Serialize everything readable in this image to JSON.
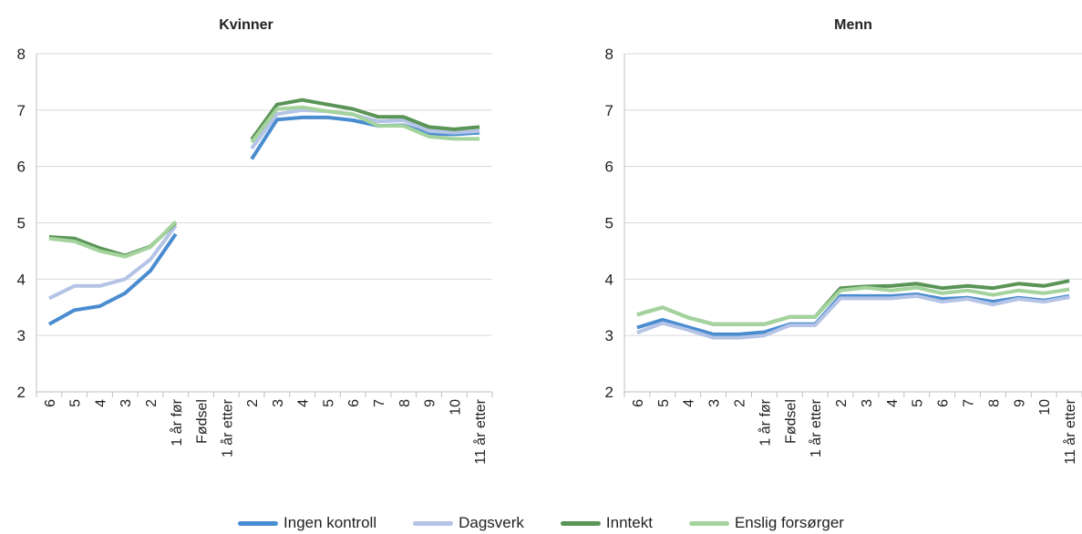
{
  "legend": [
    {
      "name": "Ingen kontroll",
      "color": "#4a8cd0"
    },
    {
      "name": "Dagsverk",
      "color": "#b4c3e6"
    },
    {
      "name": "Inntekt",
      "color": "#5a9456"
    },
    {
      "name": "Enslig forsørger",
      "color": "#a4d39d"
    }
  ],
  "chart_data": [
    {
      "type": "line",
      "title": "Kvinner",
      "categories": [
        "6",
        "5",
        "4",
        "3",
        "2",
        "1 år før",
        "Fødsel",
        "1 år etter",
        "2",
        "3",
        "4",
        "5",
        "6",
        "7",
        "8",
        "9",
        "10",
        "11 år etter"
      ],
      "ylim": [
        2,
        8
      ],
      "yticks": [
        "2",
        "3",
        "4",
        "5",
        "6",
        "7",
        "8"
      ],
      "grid": true,
      "series": [
        {
          "name": "Ingen kontroll",
          "color": "#4a8cd0",
          "values": [
            3.2,
            3.45,
            3.52,
            3.75,
            4.15,
            4.8,
            null,
            null,
            6.13,
            6.83,
            6.87,
            6.87,
            6.82,
            6.72,
            6.73,
            6.58,
            6.57,
            6.6
          ]
        },
        {
          "name": "Dagsverk",
          "color": "#b4c3e6",
          "values": [
            3.66,
            3.88,
            3.88,
            4.0,
            4.35,
            4.95,
            null,
            null,
            6.32,
            6.93,
            7.0,
            6.98,
            6.92,
            6.8,
            6.82,
            6.63,
            6.6,
            6.63
          ]
        },
        {
          "name": "Inntekt",
          "color": "#5a9456",
          "values": [
            4.75,
            4.72,
            4.55,
            4.42,
            4.58,
            5.0,
            null,
            null,
            6.48,
            7.1,
            7.18,
            7.1,
            7.02,
            6.88,
            6.88,
            6.7,
            6.66,
            6.7
          ]
        },
        {
          "name": "Enslig forsørger",
          "color": "#a4d39d",
          "values": [
            4.72,
            4.67,
            4.5,
            4.4,
            4.57,
            5.02,
            null,
            null,
            6.43,
            7.02,
            7.05,
            6.98,
            6.93,
            6.72,
            6.72,
            6.53,
            6.49,
            6.49
          ]
        }
      ]
    },
    {
      "type": "line",
      "title": "Menn",
      "categories": [
        "6",
        "5",
        "4",
        "3",
        "2",
        "1 år før",
        "Fødsel",
        "1 år etter",
        "2",
        "3",
        "4",
        "5",
        "6",
        "7",
        "8",
        "9",
        "10",
        "11 år etter"
      ],
      "ylim": [
        2,
        8
      ],
      "yticks": [
        "2",
        "3",
        "4",
        "5",
        "6",
        "7",
        "8"
      ],
      "grid": true,
      "series": [
        {
          "name": "Ingen kontroll",
          "color": "#4a8cd0",
          "values": [
            3.14,
            3.28,
            3.15,
            3.02,
            3.02,
            3.06,
            3.2,
            3.2,
            3.7,
            3.7,
            3.7,
            3.73,
            3.65,
            3.67,
            3.6,
            3.67,
            3.62,
            3.7
          ]
        },
        {
          "name": "Dagsverk",
          "color": "#b4c3e6",
          "values": [
            3.05,
            3.22,
            3.1,
            2.96,
            2.96,
            3.0,
            3.18,
            3.18,
            3.66,
            3.66,
            3.66,
            3.7,
            3.6,
            3.65,
            3.55,
            3.65,
            3.6,
            3.68
          ]
        },
        {
          "name": "Inntekt",
          "color": "#5a9456",
          "values": [
            3.37,
            3.5,
            3.32,
            3.2,
            3.2,
            3.2,
            3.33,
            3.33,
            3.84,
            3.87,
            3.88,
            3.92,
            3.84,
            3.88,
            3.84,
            3.92,
            3.88,
            3.97
          ]
        },
        {
          "name": "Enslig forsørger",
          "color": "#a4d39d",
          "values": [
            3.37,
            3.5,
            3.32,
            3.2,
            3.2,
            3.2,
            3.33,
            3.33,
            3.8,
            3.85,
            3.8,
            3.85,
            3.75,
            3.8,
            3.72,
            3.8,
            3.75,
            3.82
          ]
        }
      ]
    }
  ]
}
